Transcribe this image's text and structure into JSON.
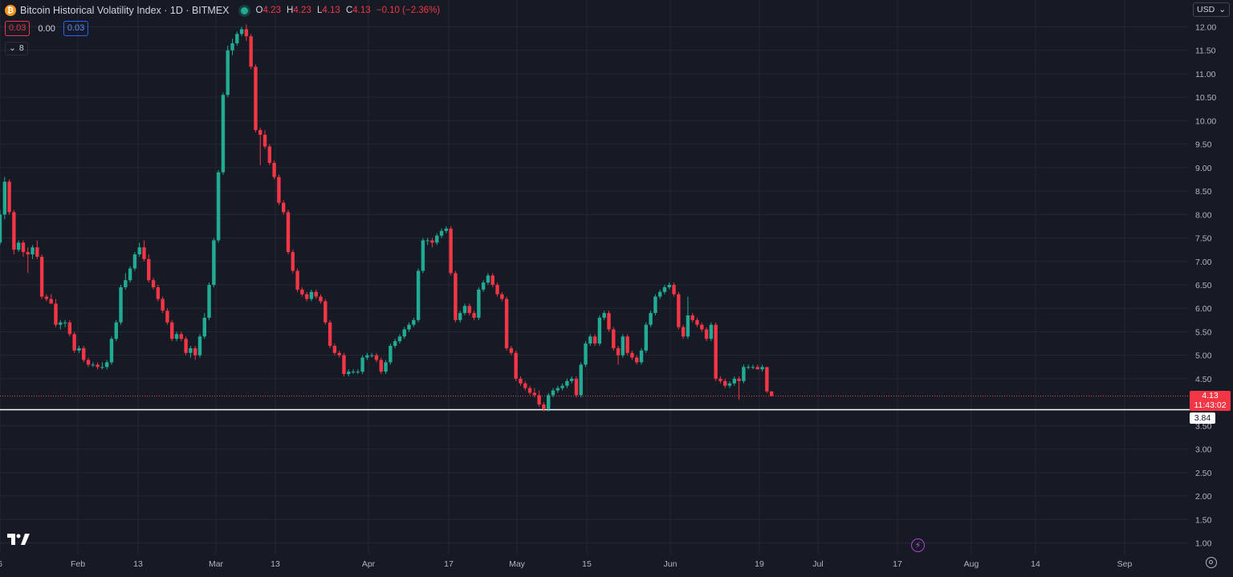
{
  "header": {
    "coin_symbol": "₿",
    "title": "Bitcoin Historical Volatility Index · 1D · BITMEX",
    "ohlc": {
      "o_label": "O",
      "o": "4.23",
      "h_label": "H",
      "h": "4.23",
      "l_label": "L",
      "l": "4.13",
      "c_label": "C",
      "c": "4.13",
      "change": "−0.10 (−2.36%)"
    },
    "indicator_values": [
      "0.03",
      "0.00",
      "0.03"
    ],
    "collapsed_count": "8",
    "currency": "USD"
  },
  "colors": {
    "background": "#161a25",
    "up": "#22ab94",
    "down": "#f23645",
    "grid": "#242832",
    "axis_text": "#b2b5be",
    "horizontal_line": "#ffffff"
  },
  "icons": {
    "logo": "tradingview-logo-icon",
    "coin": "bitcoin-icon",
    "live": "live-status-dot-icon",
    "collapse": "chevron-down-icon",
    "dropdown": "chevron-down-icon",
    "bolt": "lightning-icon",
    "settings": "gear-icon"
  },
  "price_badge": {
    "price": "4.13",
    "countdown": "11:43:02"
  },
  "line_badge": "3.84",
  "chart_data": {
    "type": "candlestick",
    "title": "Bitcoin Historical Volatility Index · 1D · BITMEX",
    "x_tick_labels": [
      "6",
      "Feb",
      "13",
      "Mar",
      "13",
      "Apr",
      "17",
      "May",
      "15",
      "Jun",
      "19",
      "Jul",
      "17",
      "Aug",
      "14",
      "Sep"
    ],
    "y_tick_labels": [
      "1.00",
      "1.50",
      "2.00",
      "2.50",
      "3.00",
      "3.50",
      "4.50",
      "5.00",
      "5.50",
      "6.00",
      "6.50",
      "7.00",
      "7.50",
      "8.00",
      "8.50",
      "9.00",
      "9.50",
      "10.00",
      "10.50",
      "11.00",
      "11.50",
      "12.00"
    ],
    "ylim": [
      0.85,
      12.35
    ],
    "grid": true,
    "last_price": 4.13,
    "horizontal_line": 3.84,
    "candles": [
      {
        "o": 7.4,
        "h": 8.1,
        "l": 7.35,
        "c": 8.0
      },
      {
        "o": 8.0,
        "h": 8.8,
        "l": 7.9,
        "c": 8.7
      },
      {
        "o": 8.7,
        "h": 8.75,
        "l": 8.0,
        "c": 8.05
      },
      {
        "o": 8.05,
        "h": 8.1,
        "l": 7.15,
        "c": 7.25
      },
      {
        "o": 7.25,
        "h": 7.45,
        "l": 7.2,
        "c": 7.4
      },
      {
        "o": 7.4,
        "h": 7.45,
        "l": 7.1,
        "c": 7.2
      },
      {
        "o": 7.2,
        "h": 7.3,
        "l": 6.75,
        "c": 7.15
      },
      {
        "o": 7.15,
        "h": 7.35,
        "l": 7.05,
        "c": 7.3
      },
      {
        "o": 7.3,
        "h": 7.45,
        "l": 7.05,
        "c": 7.1
      },
      {
        "o": 7.1,
        "h": 7.15,
        "l": 6.2,
        "c": 6.25
      },
      {
        "o": 6.25,
        "h": 6.3,
        "l": 6.15,
        "c": 6.2
      },
      {
        "o": 6.2,
        "h": 6.3,
        "l": 6.1,
        "c": 6.1
      },
      {
        "o": 6.1,
        "h": 6.2,
        "l": 5.6,
        "c": 5.65
      },
      {
        "o": 5.65,
        "h": 5.75,
        "l": 5.55,
        "c": 5.7
      },
      {
        "o": 5.7,
        "h": 5.75,
        "l": 5.6,
        "c": 5.7
      },
      {
        "o": 5.7,
        "h": 5.75,
        "l": 5.4,
        "c": 5.45
      },
      {
        "o": 5.45,
        "h": 5.5,
        "l": 5.05,
        "c": 5.1
      },
      {
        "o": 5.1,
        "h": 5.2,
        "l": 5.05,
        "c": 5.15
      },
      {
        "o": 5.15,
        "h": 5.2,
        "l": 4.85,
        "c": 4.9
      },
      {
        "o": 4.9,
        "h": 4.95,
        "l": 4.75,
        "c": 4.8
      },
      {
        "o": 4.8,
        "h": 4.85,
        "l": 4.75,
        "c": 4.8
      },
      {
        "o": 4.8,
        "h": 4.85,
        "l": 4.7,
        "c": 4.75
      },
      {
        "o": 4.75,
        "h": 4.85,
        "l": 4.7,
        "c": 4.75
      },
      {
        "o": 4.75,
        "h": 4.9,
        "l": 4.7,
        "c": 4.85
      },
      {
        "o": 4.85,
        "h": 5.4,
        "l": 4.8,
        "c": 5.35
      },
      {
        "o": 5.35,
        "h": 5.75,
        "l": 5.3,
        "c": 5.7
      },
      {
        "o": 5.7,
        "h": 6.5,
        "l": 5.65,
        "c": 6.45
      },
      {
        "o": 6.45,
        "h": 6.75,
        "l": 6.4,
        "c": 6.6
      },
      {
        "o": 6.6,
        "h": 6.9,
        "l": 6.55,
        "c": 6.85
      },
      {
        "o": 6.85,
        "h": 7.2,
        "l": 6.8,
        "c": 7.15
      },
      {
        "o": 7.15,
        "h": 7.4,
        "l": 7.1,
        "c": 7.3
      },
      {
        "o": 7.3,
        "h": 7.45,
        "l": 7.0,
        "c": 7.05
      },
      {
        "o": 7.05,
        "h": 7.15,
        "l": 6.55,
        "c": 6.6
      },
      {
        "o": 6.6,
        "h": 6.65,
        "l": 6.4,
        "c": 6.45
      },
      {
        "o": 6.45,
        "h": 6.5,
        "l": 6.15,
        "c": 6.2
      },
      {
        "o": 6.2,
        "h": 6.25,
        "l": 5.9,
        "c": 5.95
      },
      {
        "o": 5.95,
        "h": 6.0,
        "l": 5.65,
        "c": 5.7
      },
      {
        "o": 5.7,
        "h": 5.75,
        "l": 5.3,
        "c": 5.35
      },
      {
        "o": 5.35,
        "h": 5.5,
        "l": 5.3,
        "c": 5.45
      },
      {
        "o": 5.45,
        "h": 5.5,
        "l": 5.3,
        "c": 5.35
      },
      {
        "o": 5.35,
        "h": 5.4,
        "l": 5.0,
        "c": 5.05
      },
      {
        "o": 5.05,
        "h": 5.2,
        "l": 4.95,
        "c": 5.15
      },
      {
        "o": 5.15,
        "h": 5.2,
        "l": 4.9,
        "c": 5.0
      },
      {
        "o": 5.0,
        "h": 5.45,
        "l": 4.95,
        "c": 5.4
      },
      {
        "o": 5.4,
        "h": 5.9,
        "l": 5.35,
        "c": 5.8
      },
      {
        "o": 5.8,
        "h": 6.55,
        "l": 5.75,
        "c": 6.5
      },
      {
        "o": 6.5,
        "h": 7.5,
        "l": 6.45,
        "c": 7.45
      },
      {
        "o": 7.45,
        "h": 8.95,
        "l": 7.4,
        "c": 8.9
      },
      {
        "o": 8.9,
        "h": 10.6,
        "l": 8.85,
        "c": 10.55
      },
      {
        "o": 10.55,
        "h": 11.6,
        "l": 10.5,
        "c": 11.5
      },
      {
        "o": 11.5,
        "h": 11.75,
        "l": 11.4,
        "c": 11.65
      },
      {
        "o": 11.65,
        "h": 11.9,
        "l": 11.6,
        "c": 11.85
      },
      {
        "o": 11.85,
        "h": 12.0,
        "l": 11.8,
        "c": 11.95
      },
      {
        "o": 11.95,
        "h": 12.05,
        "l": 11.7,
        "c": 11.8
      },
      {
        "o": 11.8,
        "h": 11.85,
        "l": 11.1,
        "c": 11.15
      },
      {
        "o": 11.15,
        "h": 11.2,
        "l": 9.75,
        "c": 9.8
      },
      {
        "o": 9.8,
        "h": 9.85,
        "l": 9.05,
        "c": 9.7
      },
      {
        "o": 9.7,
        "h": 9.8,
        "l": 9.4,
        "c": 9.45
      },
      {
        "o": 9.45,
        "h": 9.5,
        "l": 9.05,
        "c": 9.1
      },
      {
        "o": 9.1,
        "h": 9.15,
        "l": 8.75,
        "c": 8.8
      },
      {
        "o": 8.8,
        "h": 8.85,
        "l": 8.2,
        "c": 8.25
      },
      {
        "o": 8.25,
        "h": 8.3,
        "l": 8.0,
        "c": 8.05
      },
      {
        "o": 8.05,
        "h": 8.1,
        "l": 7.15,
        "c": 7.2
      },
      {
        "o": 7.2,
        "h": 7.25,
        "l": 6.75,
        "c": 6.8
      },
      {
        "o": 6.8,
        "h": 6.85,
        "l": 6.35,
        "c": 6.4
      },
      {
        "o": 6.4,
        "h": 6.45,
        "l": 6.25,
        "c": 6.3
      },
      {
        "o": 6.3,
        "h": 6.35,
        "l": 6.15,
        "c": 6.2
      },
      {
        "o": 6.2,
        "h": 6.4,
        "l": 6.15,
        "c": 6.35
      },
      {
        "o": 6.35,
        "h": 6.4,
        "l": 6.2,
        "c": 6.25
      },
      {
        "o": 6.25,
        "h": 6.3,
        "l": 6.1,
        "c": 6.15
      },
      {
        "o": 6.15,
        "h": 6.2,
        "l": 5.65,
        "c": 5.7
      },
      {
        "o": 5.7,
        "h": 5.75,
        "l": 5.15,
        "c": 5.2
      },
      {
        "o": 5.2,
        "h": 5.25,
        "l": 5.0,
        "c": 5.05
      },
      {
        "o": 5.05,
        "h": 5.1,
        "l": 4.95,
        "c": 5.0
      },
      {
        "o": 5.0,
        "h": 5.05,
        "l": 4.55,
        "c": 4.6
      },
      {
        "o": 4.6,
        "h": 4.7,
        "l": 4.55,
        "c": 4.65
      },
      {
        "o": 4.65,
        "h": 4.7,
        "l": 4.6,
        "c": 4.65
      },
      {
        "o": 4.65,
        "h": 4.7,
        "l": 4.6,
        "c": 4.65
      },
      {
        "o": 4.65,
        "h": 5.0,
        "l": 4.6,
        "c": 4.95
      },
      {
        "o": 4.95,
        "h": 5.05,
        "l": 4.9,
        "c": 5.0
      },
      {
        "o": 5.0,
        "h": 5.05,
        "l": 4.95,
        "c": 5.0
      },
      {
        "o": 5.0,
        "h": 5.05,
        "l": 4.85,
        "c": 4.9
      },
      {
        "o": 4.9,
        "h": 4.95,
        "l": 4.6,
        "c": 4.65
      },
      {
        "o": 4.65,
        "h": 4.9,
        "l": 4.6,
        "c": 4.85
      },
      {
        "o": 4.85,
        "h": 5.25,
        "l": 4.8,
        "c": 5.2
      },
      {
        "o": 5.2,
        "h": 5.35,
        "l": 5.15,
        "c": 5.3
      },
      {
        "o": 5.3,
        "h": 5.45,
        "l": 5.25,
        "c": 5.4
      },
      {
        "o": 5.4,
        "h": 5.6,
        "l": 5.35,
        "c": 5.55
      },
      {
        "o": 5.55,
        "h": 5.7,
        "l": 5.5,
        "c": 5.65
      },
      {
        "o": 5.65,
        "h": 5.8,
        "l": 5.6,
        "c": 5.75
      },
      {
        "o": 5.75,
        "h": 6.85,
        "l": 5.7,
        "c": 6.8
      },
      {
        "o": 6.8,
        "h": 7.5,
        "l": 6.75,
        "c": 7.45
      },
      {
        "o": 7.45,
        "h": 7.5,
        "l": 7.35,
        "c": 7.45
      },
      {
        "o": 7.45,
        "h": 7.5,
        "l": 7.3,
        "c": 7.4
      },
      {
        "o": 7.4,
        "h": 7.6,
        "l": 7.35,
        "c": 7.55
      },
      {
        "o": 7.55,
        "h": 7.7,
        "l": 7.5,
        "c": 7.65
      },
      {
        "o": 7.65,
        "h": 7.75,
        "l": 7.6,
        "c": 7.7
      },
      {
        "o": 7.7,
        "h": 7.75,
        "l": 6.7,
        "c": 6.75
      },
      {
        "o": 6.75,
        "h": 6.8,
        "l": 5.7,
        "c": 5.75
      },
      {
        "o": 5.75,
        "h": 5.95,
        "l": 5.7,
        "c": 5.9
      },
      {
        "o": 5.9,
        "h": 6.1,
        "l": 5.85,
        "c": 6.05
      },
      {
        "o": 6.05,
        "h": 6.1,
        "l": 5.85,
        "c": 5.9
      },
      {
        "o": 5.9,
        "h": 5.95,
        "l": 5.75,
        "c": 5.8
      },
      {
        "o": 5.8,
        "h": 6.45,
        "l": 5.75,
        "c": 6.4
      },
      {
        "o": 6.4,
        "h": 6.6,
        "l": 6.35,
        "c": 6.55
      },
      {
        "o": 6.55,
        "h": 6.75,
        "l": 6.5,
        "c": 6.7
      },
      {
        "o": 6.7,
        "h": 6.75,
        "l": 6.45,
        "c": 6.5
      },
      {
        "o": 6.5,
        "h": 6.55,
        "l": 6.25,
        "c": 6.3
      },
      {
        "o": 6.3,
        "h": 6.35,
        "l": 6.15,
        "c": 6.2
      },
      {
        "o": 6.2,
        "h": 6.25,
        "l": 5.1,
        "c": 5.15
      },
      {
        "o": 5.15,
        "h": 5.2,
        "l": 5.0,
        "c": 5.05
      },
      {
        "o": 5.05,
        "h": 5.1,
        "l": 4.45,
        "c": 4.5
      },
      {
        "o": 4.5,
        "h": 4.55,
        "l": 4.35,
        "c": 4.4
      },
      {
        "o": 4.4,
        "h": 4.45,
        "l": 4.25,
        "c": 4.3
      },
      {
        "o": 4.3,
        "h": 4.35,
        "l": 4.15,
        "c": 4.2
      },
      {
        "o": 4.2,
        "h": 4.3,
        "l": 4.1,
        "c": 4.15
      },
      {
        "o": 4.15,
        "h": 4.25,
        "l": 3.9,
        "c": 3.95
      },
      {
        "o": 3.95,
        "h": 4.0,
        "l": 3.8,
        "c": 3.85
      },
      {
        "o": 3.85,
        "h": 4.2,
        "l": 3.8,
        "c": 4.15
      },
      {
        "o": 4.15,
        "h": 4.3,
        "l": 4.1,
        "c": 4.25
      },
      {
        "o": 4.25,
        "h": 4.35,
        "l": 4.2,
        "c": 4.3
      },
      {
        "o": 4.3,
        "h": 4.4,
        "l": 4.25,
        "c": 4.35
      },
      {
        "o": 4.35,
        "h": 4.5,
        "l": 4.3,
        "c": 4.45
      },
      {
        "o": 4.45,
        "h": 4.55,
        "l": 4.4,
        "c": 4.5
      },
      {
        "o": 4.5,
        "h": 4.55,
        "l": 4.1,
        "c": 4.15
      },
      {
        "o": 4.15,
        "h": 4.85,
        "l": 4.1,
        "c": 4.8
      },
      {
        "o": 4.8,
        "h": 5.3,
        "l": 4.75,
        "c": 5.25
      },
      {
        "o": 5.25,
        "h": 5.45,
        "l": 5.2,
        "c": 5.4
      },
      {
        "o": 5.4,
        "h": 5.45,
        "l": 5.2,
        "c": 5.25
      },
      {
        "o": 5.25,
        "h": 5.85,
        "l": 5.2,
        "c": 5.8
      },
      {
        "o": 5.8,
        "h": 5.95,
        "l": 5.75,
        "c": 5.9
      },
      {
        "o": 5.9,
        "h": 5.95,
        "l": 5.5,
        "c": 5.55
      },
      {
        "o": 5.55,
        "h": 5.6,
        "l": 5.1,
        "c": 5.15
      },
      {
        "o": 5.15,
        "h": 5.2,
        "l": 4.8,
        "c": 5.0
      },
      {
        "o": 5.0,
        "h": 5.45,
        "l": 4.95,
        "c": 5.4
      },
      {
        "o": 5.4,
        "h": 5.45,
        "l": 5.0,
        "c": 5.05
      },
      {
        "o": 5.05,
        "h": 5.1,
        "l": 4.9,
        "c": 4.95
      },
      {
        "o": 4.95,
        "h": 5.0,
        "l": 4.8,
        "c": 4.85
      },
      {
        "o": 4.85,
        "h": 5.15,
        "l": 4.8,
        "c": 5.1
      },
      {
        "o": 5.1,
        "h": 5.7,
        "l": 5.05,
        "c": 5.65
      },
      {
        "o": 5.65,
        "h": 5.95,
        "l": 5.6,
        "c": 5.9
      },
      {
        "o": 5.9,
        "h": 6.3,
        "l": 5.85,
        "c": 6.25
      },
      {
        "o": 6.25,
        "h": 6.4,
        "l": 6.2,
        "c": 6.35
      },
      {
        "o": 6.35,
        "h": 6.5,
        "l": 6.3,
        "c": 6.45
      },
      {
        "o": 6.45,
        "h": 6.55,
        "l": 6.4,
        "c": 6.5
      },
      {
        "o": 6.5,
        "h": 6.55,
        "l": 6.25,
        "c": 6.3
      },
      {
        "o": 6.3,
        "h": 6.35,
        "l": 5.55,
        "c": 5.6
      },
      {
        "o": 5.6,
        "h": 5.65,
        "l": 5.35,
        "c": 5.4
      },
      {
        "o": 5.4,
        "h": 6.25,
        "l": 5.35,
        "c": 5.85
      },
      {
        "o": 5.85,
        "h": 5.9,
        "l": 5.7,
        "c": 5.75
      },
      {
        "o": 5.75,
        "h": 5.8,
        "l": 5.6,
        "c": 5.65
      },
      {
        "o": 5.65,
        "h": 5.7,
        "l": 5.5,
        "c": 5.55
      },
      {
        "o": 5.55,
        "h": 5.6,
        "l": 5.3,
        "c": 5.35
      },
      {
        "o": 5.35,
        "h": 5.7,
        "l": 5.3,
        "c": 5.65
      },
      {
        "o": 5.65,
        "h": 5.7,
        "l": 4.45,
        "c": 4.5
      },
      {
        "o": 4.5,
        "h": 4.55,
        "l": 4.4,
        "c": 4.45
      },
      {
        "o": 4.45,
        "h": 4.5,
        "l": 4.3,
        "c": 4.35
      },
      {
        "o": 4.35,
        "h": 4.45,
        "l": 4.3,
        "c": 4.4
      },
      {
        "o": 4.4,
        "h": 4.55,
        "l": 4.35,
        "c": 4.5
      },
      {
        "o": 4.5,
        "h": 4.55,
        "l": 4.05,
        "c": 4.45
      },
      {
        "o": 4.45,
        "h": 4.8,
        "l": 4.4,
        "c": 4.75
      },
      {
        "o": 4.75,
        "h": 4.8,
        "l": 4.7,
        "c": 4.75
      },
      {
        "o": 4.75,
        "h": 4.8,
        "l": 4.7,
        "c": 4.75
      },
      {
        "o": 4.75,
        "h": 4.8,
        "l": 4.7,
        "c": 4.7
      },
      {
        "o": 4.7,
        "h": 4.8,
        "l": 4.65,
        "c": 4.75
      },
      {
        "o": 4.75,
        "h": 4.75,
        "l": 4.2,
        "c": 4.23
      },
      {
        "o": 4.23,
        "h": 4.23,
        "l": 4.13,
        "c": 4.13
      }
    ]
  }
}
